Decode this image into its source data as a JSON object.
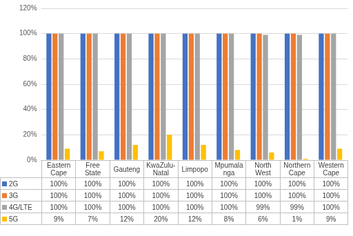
{
  "chart_data": {
    "type": "bar",
    "categories": [
      "Eastern Cape",
      "Free State",
      "Gauteng",
      "KwaZulu-Natal",
      "Limpopo",
      "Mpumalanga",
      "North West",
      "Northern Cape",
      "Western Cape"
    ],
    "series": [
      {
        "name": "2G",
        "color": "#4472c4",
        "values": [
          100,
          100,
          100,
          100,
          100,
          100,
          100,
          100,
          100
        ],
        "value_labels": [
          "100%",
          "100%",
          "100%",
          "100%",
          "100%",
          "100%",
          "100%",
          "100%",
          "100%"
        ]
      },
      {
        "name": "3G",
        "color": "#ed7d31",
        "values": [
          100,
          100,
          100,
          100,
          100,
          100,
          100,
          100,
          100
        ],
        "value_labels": [
          "100%",
          "100%",
          "100%",
          "100%",
          "100%",
          "100%",
          "100%",
          "100%",
          "100%"
        ]
      },
      {
        "name": "4G/LTE",
        "color": "#a5a5a5",
        "values": [
          100,
          100,
          100,
          100,
          100,
          100,
          99,
          99,
          100
        ],
        "value_labels": [
          "100%",
          "100%",
          "100%",
          "100%",
          "100%",
          "100%",
          "99%",
          "99%",
          "100%"
        ]
      },
      {
        "name": "5G",
        "color": "#ffc000",
        "values": [
          9,
          7,
          12,
          20,
          12,
          8,
          6,
          1,
          9
        ],
        "value_labels": [
          "9%",
          "7%",
          "12%",
          "20%",
          "12%",
          "8%",
          "6%",
          "1%",
          "9%"
        ]
      }
    ],
    "ylim": [
      0,
      120
    ],
    "yticks": [
      {
        "value": 0,
        "label": "0%"
      },
      {
        "value": 20,
        "label": "20%"
      },
      {
        "value": 40,
        "label": "40%"
      },
      {
        "value": 60,
        "label": "60%"
      },
      {
        "value": 80,
        "label": "80%"
      },
      {
        "value": 100,
        "label": "100%"
      },
      {
        "value": 120,
        "label": "120%"
      }
    ],
    "grid": true,
    "tick_labels": "y"
  }
}
